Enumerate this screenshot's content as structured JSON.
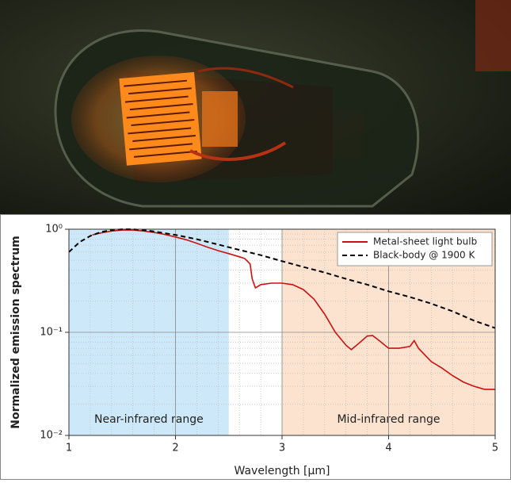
{
  "chart_data": {
    "type": "line",
    "xlabel": "Wavelength [μm]",
    "ylabel": "Normalized emission spectrum",
    "xlim": [
      1,
      5
    ],
    "xticks": [
      1,
      2,
      3,
      4,
      5
    ],
    "ylim": [
      0.01,
      1
    ],
    "yticks": [
      {
        "value": 0.01,
        "label": "10⁻²"
      },
      {
        "value": 0.1,
        "label": "10⁻¹"
      },
      {
        "value": 1,
        "label": "10⁰"
      }
    ],
    "yscale": "log",
    "grid": true,
    "legend": "upper right",
    "regions": [
      {
        "label": "Near-infrared range",
        "start": 1,
        "end": 2.5,
        "color": "#cde9f9"
      },
      {
        "label": "Mid-infrared range",
        "start": 3,
        "end": 5,
        "color": "#fce3cf"
      }
    ],
    "series": [
      {
        "name": "Metal-sheet light bulb",
        "color": "#cc1111",
        "style": "solid",
        "x": [
          1.22,
          1.3,
          1.4,
          1.5,
          1.6,
          1.7,
          1.8,
          1.9,
          2.0,
          2.1,
          2.2,
          2.3,
          2.4,
          2.5,
          2.6,
          2.65,
          2.7,
          2.72,
          2.75,
          2.8,
          2.9,
          3.0,
          3.1,
          3.2,
          3.3,
          3.4,
          3.5,
          3.6,
          3.65,
          3.7,
          3.8,
          3.85,
          3.9,
          4.0,
          4.1,
          4.2,
          4.24,
          4.28,
          4.4,
          4.5,
          4.6,
          4.7,
          4.8,
          4.9,
          5.0
        ],
        "values": [
          0.88,
          0.92,
          0.96,
          0.98,
          0.98,
          0.96,
          0.93,
          0.89,
          0.84,
          0.79,
          0.73,
          0.67,
          0.62,
          0.58,
          0.54,
          0.52,
          0.46,
          0.33,
          0.27,
          0.29,
          0.3,
          0.3,
          0.29,
          0.26,
          0.21,
          0.15,
          0.1,
          0.075,
          0.068,
          0.075,
          0.092,
          0.093,
          0.085,
          0.07,
          0.07,
          0.073,
          0.083,
          0.07,
          0.052,
          0.045,
          0.038,
          0.033,
          0.03,
          0.028,
          0.028
        ]
      },
      {
        "name": "Black-body @ 1900 K",
        "color": "#000000",
        "style": "dashed",
        "x": [
          1.0,
          1.1,
          1.2,
          1.3,
          1.4,
          1.5,
          1.6,
          1.7,
          1.8,
          2.0,
          2.2,
          2.4,
          2.6,
          2.8,
          3.0,
          3.2,
          3.4,
          3.6,
          3.8,
          4.0,
          4.2,
          4.4,
          4.6,
          4.8,
          5.0
        ],
        "values": [
          0.6,
          0.75,
          0.86,
          0.94,
          0.98,
          1.0,
          1.0,
          0.98,
          0.95,
          0.88,
          0.8,
          0.71,
          0.63,
          0.56,
          0.49,
          0.43,
          0.38,
          0.33,
          0.29,
          0.25,
          0.22,
          0.19,
          0.16,
          0.13,
          0.11
        ]
      }
    ]
  }
}
